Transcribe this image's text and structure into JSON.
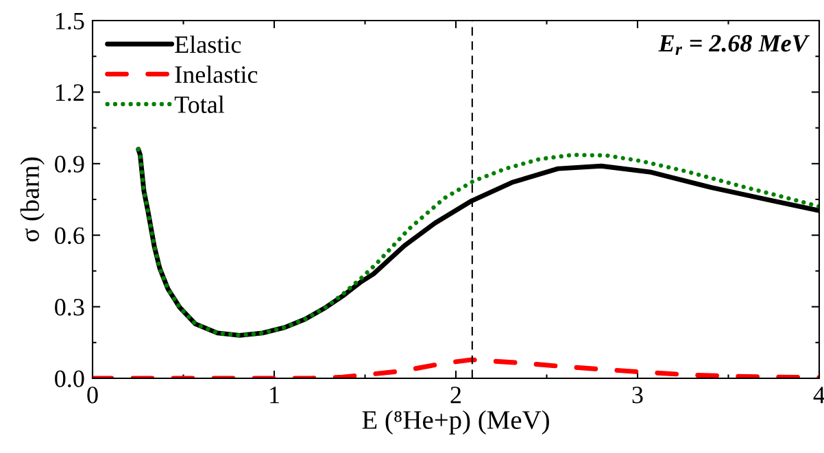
{
  "chart_data": {
    "type": "line",
    "xlabel": "E (⁸He+p) (MeV)",
    "ylabel": "σ (barn)",
    "xlim": [
      0,
      4
    ],
    "xticks": [
      0,
      1,
      2,
      3,
      4
    ],
    "ylim": [
      0,
      1.5
    ],
    "yticks": [
      {
        "value": 0,
        "label": "0.0"
      },
      {
        "value": 0.3,
        "label": "0.3"
      },
      {
        "value": 0.6,
        "label": "0.6"
      },
      {
        "value": 0.9,
        "label": "0.9"
      },
      {
        "value": 1.2,
        "label": "1.2"
      },
      {
        "value": 1.5,
        "label": "1.5"
      }
    ],
    "grid": false,
    "legend": "top left",
    "annotations": [
      "E$_{r}$ = 2.68 MeV"
    ],
    "ref_lines": [
      {
        "axis": "x",
        "value": 2.09,
        "label": null,
        "color": "#000000",
        "line_style": "dashed"
      }
    ],
    "series": [
      {
        "name": "Elastic",
        "color": "#000000",
        "line_style": "solid",
        "x": [
          0.252,
          0.262,
          0.283,
          0.306,
          0.34,
          0.37,
          0.415,
          0.48,
          0.566,
          0.687,
          0.81,
          0.936,
          1.057,
          1.17,
          1.283,
          1.377,
          1.479,
          1.547,
          1.717,
          1.885,
          2.087,
          2.308,
          2.562,
          2.8,
          3.068,
          3.407,
          3.747,
          4.0
        ],
        "values": [
          0.96,
          0.937,
          0.784,
          0.697,
          0.553,
          0.461,
          0.375,
          0.297,
          0.228,
          0.19,
          0.18,
          0.19,
          0.213,
          0.248,
          0.297,
          0.345,
          0.405,
          0.438,
          0.556,
          0.651,
          0.744,
          0.821,
          0.879,
          0.89,
          0.865,
          0.8,
          0.744,
          0.703
        ]
      },
      {
        "name": "Inelastic",
        "color": "#ff0000",
        "line_style": "dashed",
        "x": [
          0,
          0.5,
          1.0,
          1.2,
          1.377,
          1.7,
          1.936,
          2.087,
          2.325,
          2.646,
          2.968,
          3.29,
          3.61,
          4.0
        ],
        "values": [
          0,
          0,
          0,
          0,
          0.005,
          0.03,
          0.063,
          0.078,
          0.066,
          0.046,
          0.029,
          0.014,
          0.007,
          0.003
        ]
      },
      {
        "name": "Total",
        "color": "#008000",
        "line_style": "dotted",
        "x": [
          0.252,
          0.262,
          0.283,
          0.306,
          0.34,
          0.37,
          0.415,
          0.48,
          0.566,
          0.687,
          0.81,
          0.936,
          1.057,
          1.17,
          1.283,
          1.377,
          1.479,
          1.562,
          1.74,
          1.936,
          2.097,
          2.274,
          2.46,
          2.646,
          2.832,
          3.019,
          3.272,
          3.577,
          3.83,
          4.0
        ],
        "values": [
          0.96,
          0.937,
          0.784,
          0.697,
          0.553,
          0.461,
          0.375,
          0.297,
          0.228,
          0.19,
          0.18,
          0.19,
          0.213,
          0.248,
          0.297,
          0.352,
          0.42,
          0.48,
          0.625,
          0.755,
          0.827,
          0.879,
          0.919,
          0.937,
          0.934,
          0.911,
          0.867,
          0.804,
          0.755,
          0.72
        ]
      }
    ]
  }
}
